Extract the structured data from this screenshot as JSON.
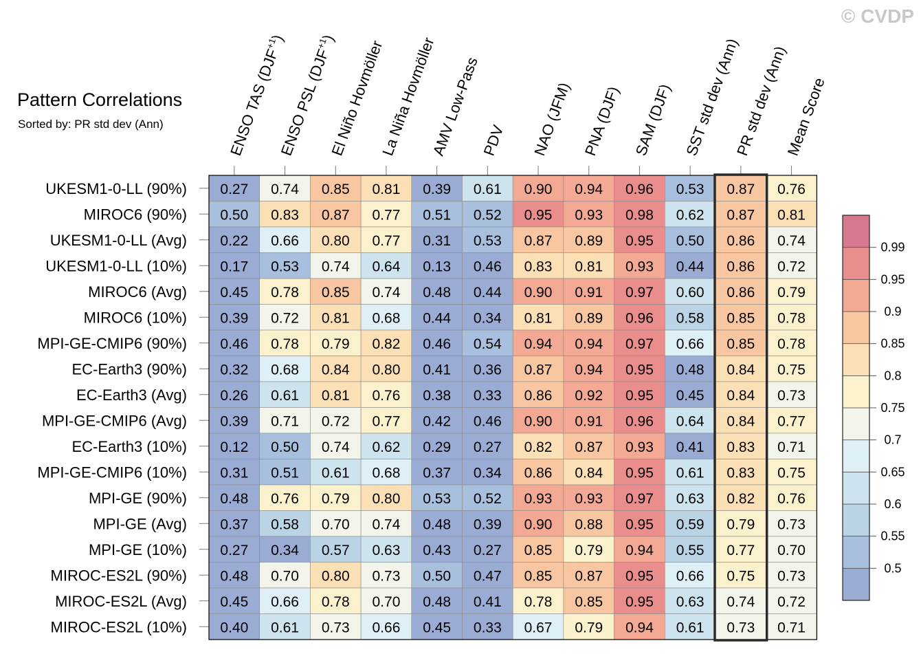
{
  "watermark": "© CVDP",
  "chart_data": {
    "type": "heatmap",
    "title": "Pattern Correlations",
    "subtitle": "Sorted by: PR std dev (Ann)",
    "highlighted_column": "PR std dev (Ann)",
    "columns": [
      "ENSO TAS (DJF+1)",
      "ENSO PSL (DJF+1)",
      "El Niño Hovmöller",
      "La Niña Hovmöller",
      "AMV Low-Pass",
      "PDV",
      "NAO (JFM)",
      "PNA (DJF)",
      "SAM (DJF)",
      "SST std dev (Ann)",
      "PR std dev (Ann)",
      "Mean Score"
    ],
    "column_labels": [
      {
        "main": "ENSO TAS (DJF",
        "sup": "+1",
        "tail": ")"
      },
      {
        "main": "ENSO PSL (DJF",
        "sup": "+1",
        "tail": ")"
      },
      {
        "main": "El Niño Hovmöller",
        "sup": "",
        "tail": ""
      },
      {
        "main": "La Niña Hovmöller",
        "sup": "",
        "tail": ""
      },
      {
        "main": "AMV Low-Pass",
        "sup": "",
        "tail": ""
      },
      {
        "main": "PDV",
        "sup": "",
        "tail": ""
      },
      {
        "main": "NAO (JFM)",
        "sup": "",
        "tail": ""
      },
      {
        "main": "PNA (DJF)",
        "sup": "",
        "tail": ""
      },
      {
        "main": "SAM (DJF)",
        "sup": "",
        "tail": ""
      },
      {
        "main": "SST std dev (Ann)",
        "sup": "",
        "tail": ""
      },
      {
        "main": "PR std dev (Ann)",
        "sup": "",
        "tail": ""
      },
      {
        "main": "Mean Score",
        "sup": "",
        "tail": ""
      }
    ],
    "rows": [
      "UKESM1-0-LL (90%)",
      "MIROC6 (90%)",
      "UKESM1-0-LL (Avg)",
      "UKESM1-0-LL (10%)",
      "MIROC6 (Avg)",
      "MIROC6 (10%)",
      "MPI-GE-CMIP6 (90%)",
      "EC-Earth3 (90%)",
      "EC-Earth3 (Avg)",
      "MPI-GE-CMIP6 (Avg)",
      "EC-Earth3 (10%)",
      "MPI-GE-CMIP6 (10%)",
      "MPI-GE (90%)",
      "MPI-GE (Avg)",
      "MPI-GE (10%)",
      "MIROC-ES2L (90%)",
      "MIROC-ES2L (Avg)",
      "MIROC-ES2L (10%)"
    ],
    "values": [
      [
        "0.27",
        "0.74",
        "0.85",
        "0.81",
        "0.39",
        "0.61",
        "0.90",
        "0.94",
        "0.96",
        "0.53",
        "0.87",
        "0.76"
      ],
      [
        "0.50",
        "0.83",
        "0.87",
        "0.77",
        "0.51",
        "0.52",
        "0.95",
        "0.93",
        "0.98",
        "0.62",
        "0.87",
        "0.81"
      ],
      [
        "0.22",
        "0.66",
        "0.80",
        "0.77",
        "0.31",
        "0.53",
        "0.87",
        "0.89",
        "0.95",
        "0.50",
        "0.86",
        "0.74"
      ],
      [
        "0.17",
        "0.53",
        "0.74",
        "0.64",
        "0.13",
        "0.46",
        "0.83",
        "0.81",
        "0.93",
        "0.44",
        "0.86",
        "0.72"
      ],
      [
        "0.45",
        "0.78",
        "0.85",
        "0.74",
        "0.48",
        "0.44",
        "0.90",
        "0.91",
        "0.97",
        "0.60",
        "0.86",
        "0.79"
      ],
      [
        "0.39",
        "0.72",
        "0.81",
        "0.68",
        "0.44",
        "0.34",
        "0.81",
        "0.89",
        "0.96",
        "0.58",
        "0.85",
        "0.78"
      ],
      [
        "0.46",
        "0.78",
        "0.79",
        "0.82",
        "0.46",
        "0.54",
        "0.94",
        "0.94",
        "0.97",
        "0.66",
        "0.85",
        "0.78"
      ],
      [
        "0.32",
        "0.68",
        "0.84",
        "0.80",
        "0.41",
        "0.36",
        "0.87",
        "0.94",
        "0.95",
        "0.48",
        "0.84",
        "0.75"
      ],
      [
        "0.26",
        "0.61",
        "0.81",
        "0.76",
        "0.38",
        "0.33",
        "0.86",
        "0.92",
        "0.95",
        "0.45",
        "0.84",
        "0.73"
      ],
      [
        "0.39",
        "0.71",
        "0.72",
        "0.77",
        "0.42",
        "0.46",
        "0.90",
        "0.91",
        "0.96",
        "0.64",
        "0.84",
        "0.77"
      ],
      [
        "0.12",
        "0.50",
        "0.74",
        "0.62",
        "0.29",
        "0.27",
        "0.82",
        "0.87",
        "0.93",
        "0.41",
        "0.83",
        "0.71"
      ],
      [
        "0.31",
        "0.51",
        "0.61",
        "0.68",
        "0.37",
        "0.34",
        "0.86",
        "0.84",
        "0.95",
        "0.61",
        "0.83",
        "0.75"
      ],
      [
        "0.48",
        "0.76",
        "0.79",
        "0.80",
        "0.53",
        "0.52",
        "0.93",
        "0.93",
        "0.97",
        "0.63",
        "0.82",
        "0.76"
      ],
      [
        "0.37",
        "0.58",
        "0.70",
        "0.74",
        "0.48",
        "0.39",
        "0.90",
        "0.88",
        "0.95",
        "0.59",
        "0.79",
        "0.73"
      ],
      [
        "0.27",
        "0.34",
        "0.57",
        "0.63",
        "0.43",
        "0.27",
        "0.85",
        "0.79",
        "0.94",
        "0.55",
        "0.77",
        "0.70"
      ],
      [
        "0.48",
        "0.70",
        "0.80",
        "0.73",
        "0.50",
        "0.47",
        "0.85",
        "0.87",
        "0.95",
        "0.66",
        "0.75",
        "0.73"
      ],
      [
        "0.45",
        "0.66",
        "0.78",
        "0.70",
        "0.48",
        "0.41",
        "0.78",
        "0.85",
        "0.95",
        "0.63",
        "0.74",
        "0.72"
      ],
      [
        "0.40",
        "0.61",
        "0.73",
        "0.66",
        "0.45",
        "0.33",
        "0.67",
        "0.79",
        "0.94",
        "0.61",
        "0.73",
        "0.71"
      ]
    ],
    "colorbar": {
      "ticks": [
        "0.5",
        "0.55",
        "0.6",
        "0.65",
        "0.7",
        "0.75",
        "0.8",
        "0.85",
        "0.9",
        "0.95",
        "0.99"
      ],
      "thresholds": [
        0.5,
        0.55,
        0.6,
        0.65,
        0.7,
        0.75,
        0.8,
        0.85,
        0.9,
        0.95,
        0.99
      ],
      "colors": [
        "#9aacd4",
        "#a8bfdd",
        "#bad4e6",
        "#cde3ee",
        "#def0f5",
        "#f3f5ea",
        "#fcf1cd",
        "#fce0b5",
        "#f8c7a2",
        "#f3a994",
        "#e98e8c",
        "#d7798e"
      ]
    }
  }
}
